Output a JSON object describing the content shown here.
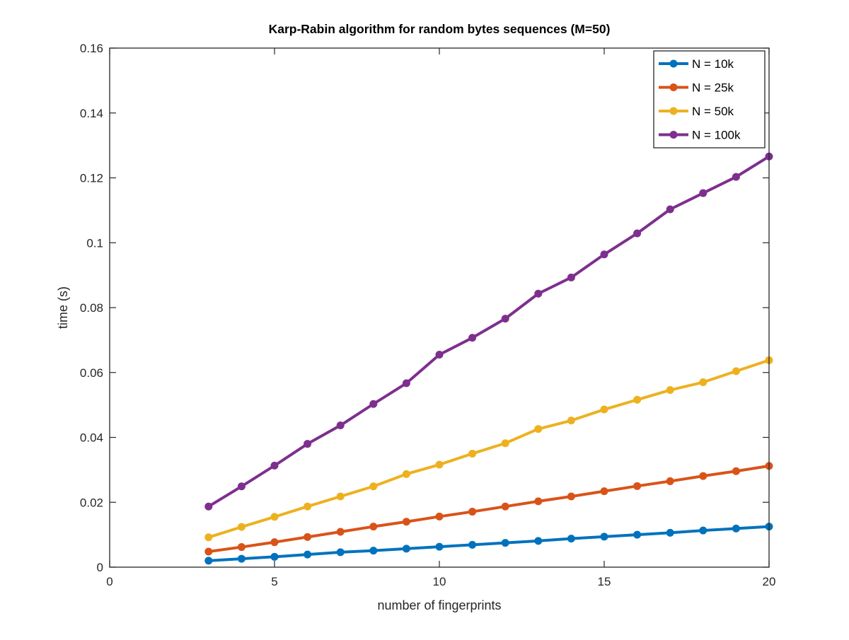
{
  "chart_data": {
    "type": "line",
    "title": "Karp-Rabin algorithm for random bytes sequences (M=50)",
    "xlabel": "number of fingerprints",
    "ylabel": "time (s)",
    "xlim": [
      0,
      20
    ],
    "ylim": [
      0,
      0.16
    ],
    "xticks": [
      0,
      5,
      10,
      15,
      20
    ],
    "xtick_labels": [
      "0",
      "5",
      "10",
      "15",
      "20"
    ],
    "yticks": [
      0,
      0.02,
      0.04,
      0.06,
      0.08,
      0.1,
      0.12,
      0.14,
      0.16
    ],
    "ytick_labels": [
      "0",
      "0.02",
      "0.04",
      "0.06",
      "0.08",
      "0.1",
      "0.12",
      "0.14",
      "0.16"
    ],
    "grid": false,
    "legend_position": "top-right",
    "x": [
      3,
      4,
      5,
      6,
      7,
      8,
      9,
      10,
      11,
      12,
      13,
      14,
      15,
      16,
      17,
      18,
      19,
      20
    ],
    "series": [
      {
        "name": "N = 10k",
        "color": "#0072BD",
        "values": [
          0.002,
          0.0026,
          0.0032,
          0.0039,
          0.0046,
          0.0051,
          0.0057,
          0.0063,
          0.0069,
          0.0075,
          0.0081,
          0.0088,
          0.0094,
          0.01,
          0.0106,
          0.0113,
          0.0119,
          0.0125
        ]
      },
      {
        "name": "N = 25k",
        "color": "#D95319",
        "values": [
          0.0048,
          0.0062,
          0.0077,
          0.0093,
          0.0109,
          0.0125,
          0.014,
          0.0156,
          0.0171,
          0.0187,
          0.0203,
          0.0218,
          0.0234,
          0.025,
          0.0265,
          0.0281,
          0.0296,
          0.0312
        ]
      },
      {
        "name": "N = 50k",
        "color": "#EDB120",
        "values": [
          0.0092,
          0.0124,
          0.0155,
          0.0187,
          0.0218,
          0.0249,
          0.0287,
          0.0316,
          0.035,
          0.0382,
          0.0426,
          0.0452,
          0.0486,
          0.0516,
          0.0546,
          0.057,
          0.0604,
          0.0638
        ]
      },
      {
        "name": "N = 100k",
        "color": "#7E2F8E",
        "values": [
          0.0187,
          0.0249,
          0.0313,
          0.038,
          0.0437,
          0.0503,
          0.0567,
          0.0655,
          0.0707,
          0.0766,
          0.0843,
          0.0893,
          0.0964,
          0.1029,
          0.1103,
          0.1153,
          0.1203,
          0.1266
        ]
      }
    ]
  }
}
